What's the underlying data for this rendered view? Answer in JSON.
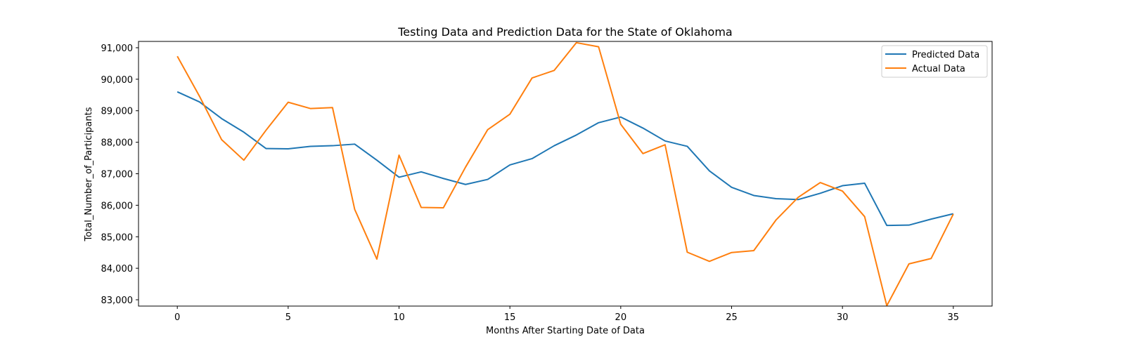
{
  "chart_data": {
    "type": "line",
    "title": "Testing Data and Prediction Data for the State of Oklahoma",
    "xlabel": "Months After Starting Date of Data",
    "ylabel": "Total_Number_of_Participants",
    "xlim": [
      -1.75,
      36.75
    ],
    "ylim": [
      82800,
      91200
    ],
    "xticks": [
      0,
      5,
      10,
      15,
      20,
      25,
      30,
      35
    ],
    "xtick_labels": [
      "0",
      "5",
      "10",
      "15",
      "20",
      "25",
      "30",
      "35"
    ],
    "yticks": [
      83000,
      84000,
      85000,
      86000,
      87000,
      88000,
      89000,
      90000,
      91000
    ],
    "ytick_labels": [
      "83,000",
      "84,000",
      "85,000",
      "86,000",
      "87,000",
      "88,000",
      "89,000",
      "90,000",
      "91,000"
    ],
    "grid": false,
    "legend_position": "top-right",
    "x": [
      0,
      1,
      2,
      3,
      4,
      5,
      6,
      7,
      8,
      9,
      10,
      11,
      12,
      13,
      14,
      15,
      16,
      17,
      18,
      19,
      20,
      21,
      22,
      23,
      24,
      25,
      26,
      27,
      28,
      29,
      30,
      31,
      32,
      33,
      34,
      35
    ],
    "series": [
      {
        "name": "Predicted Data",
        "color": "#1f77b4",
        "values": [
          89600,
          89280,
          88750,
          88320,
          87800,
          87790,
          87870,
          87890,
          87940,
          87430,
          86890,
          87060,
          86850,
          86660,
          86820,
          87280,
          87480,
          87890,
          88230,
          88620,
          88800,
          88450,
          88040,
          87870,
          87090,
          86570,
          86310,
          86210,
          86180,
          86380,
          86620,
          86700,
          85360,
          85370,
          85560,
          85730
        ]
      },
      {
        "name": "Actual Data",
        "color": "#ff7f0e",
        "values": [
          90730,
          89460,
          88080,
          87430,
          88380,
          89270,
          89070,
          89100,
          85870,
          84290,
          87590,
          85930,
          85920,
          87210,
          88400,
          88890,
          90040,
          90280,
          91160,
          91030,
          88570,
          87640,
          87920,
          84510,
          84220,
          84500,
          84560,
          85530,
          86250,
          86720,
          86450,
          85640,
          82810,
          84140,
          84310,
          85720
        ]
      }
    ]
  }
}
